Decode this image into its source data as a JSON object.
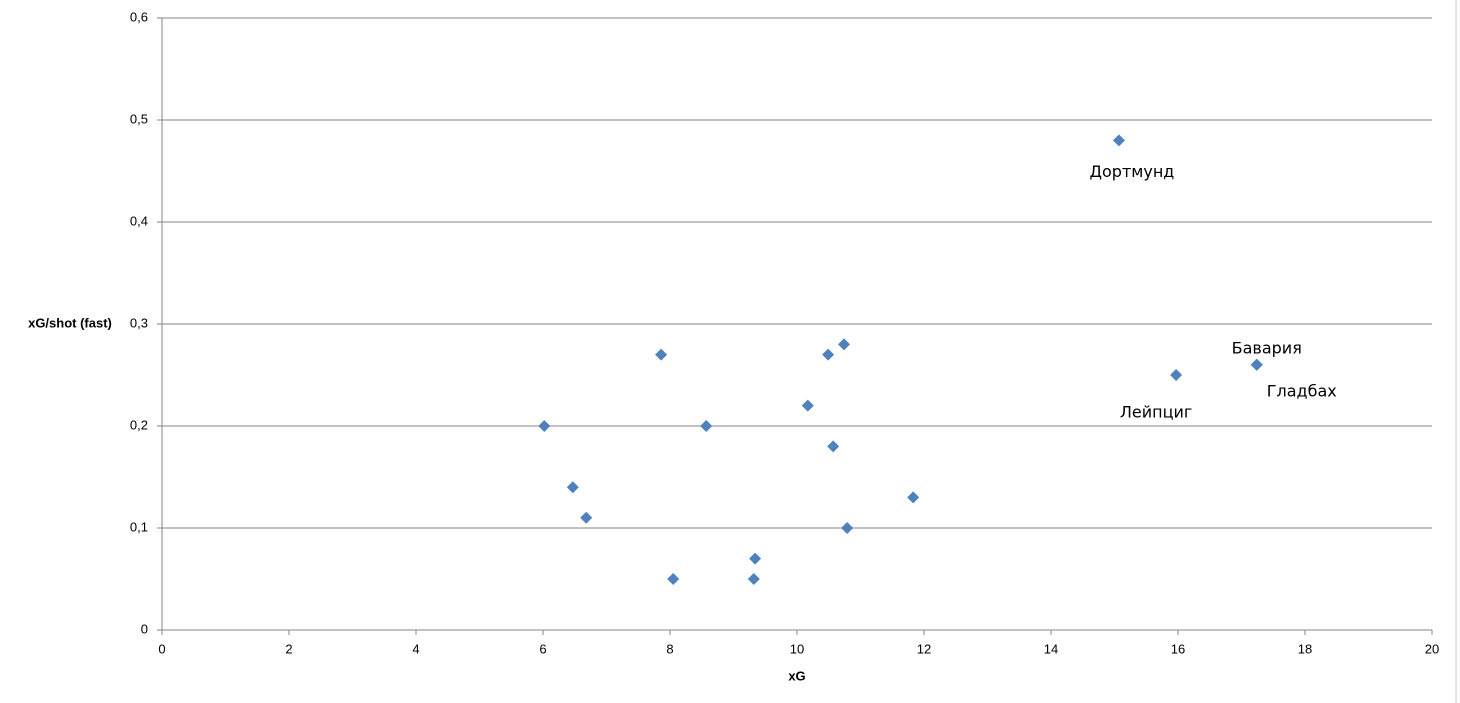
{
  "chart_data": {
    "type": "scatter",
    "x": [
      6.02,
      6.47,
      6.68,
      7.86,
      8.05,
      8.57,
      9.32,
      9.34,
      10.17,
      10.49,
      10.57,
      10.74,
      10.79,
      11.83,
      15.07,
      15.97,
      17.24,
      17.24
    ],
    "y": [
      0.2,
      0.14,
      0.11,
      0.27,
      0.05,
      0.2,
      0.05,
      0.07,
      0.22,
      0.27,
      0.18,
      0.28,
      0.1,
      0.13,
      0.48,
      0.25,
      0.26,
      0.26
    ],
    "labels": [
      null,
      null,
      null,
      null,
      null,
      null,
      null,
      null,
      null,
      null,
      null,
      null,
      null,
      null,
      "Дортмунд",
      "Лейпциг",
      "Бавария",
      "Гладбах"
    ],
    "color": "#4f81bd",
    "xlabel": "xG",
    "ylabel": "xG/shot (fast)",
    "xlim": [
      0,
      20
    ],
    "xticks": [
      0,
      2,
      4,
      6,
      8,
      10,
      12,
      14,
      16,
      18,
      20
    ],
    "ylim": [
      0,
      0.6
    ],
    "yticks": [
      0,
      {
        "value": 0.1,
        "label": "0,1"
      },
      {
        "value": 0.2,
        "label": "0,2"
      },
      {
        "value": 0.3,
        "label": "0,3"
      },
      {
        "value": 0.4,
        "label": "0,4"
      },
      {
        "value": 0.5,
        "label": "0,5"
      },
      {
        "value": 0.6,
        "label": "0,6"
      }
    ],
    "grid": true
  }
}
